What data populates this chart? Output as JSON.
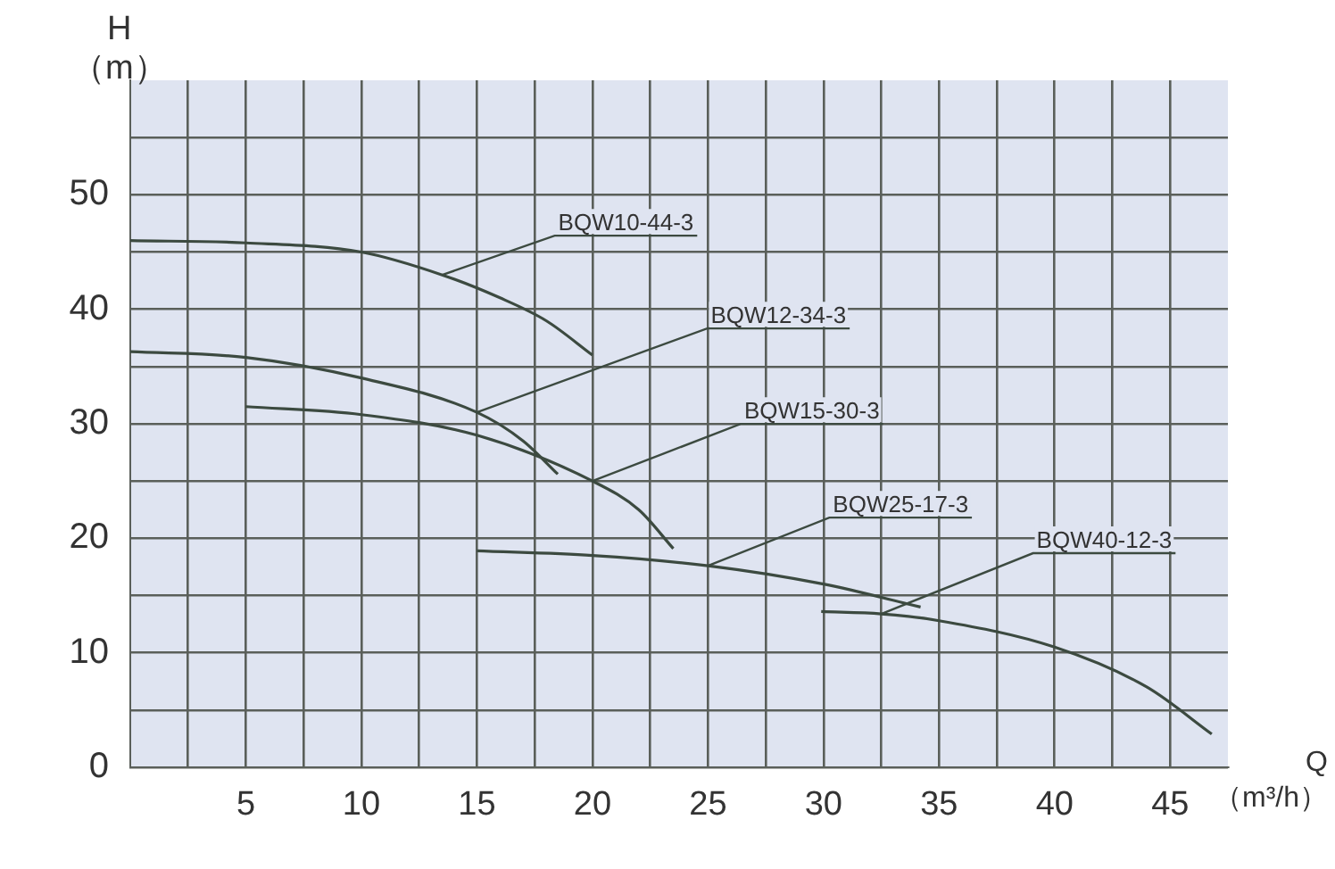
{
  "chart_data": {
    "type": "line",
    "xlabel": "Q\n（m³/h）",
    "ylabel": "H\n（m）",
    "xlim": [
      0,
      47.5
    ],
    "ylim": [
      0,
      60
    ],
    "xticks": [
      {
        "value": 2.5,
        "label": null
      },
      5,
      {
        "value": 7.5,
        "label": null
      },
      10,
      {
        "value": 12.5,
        "label": null
      },
      15,
      {
        "value": 17.5,
        "label": null
      },
      20,
      {
        "value": 22.5,
        "label": null
      },
      25,
      {
        "value": 27.5,
        "label": null
      },
      30,
      {
        "value": 32.5,
        "label": null
      },
      35,
      {
        "value": 37.5,
        "label": null
      },
      40,
      {
        "value": 42.5,
        "label": null
      },
      45
    ],
    "yticks": [
      0,
      {
        "value": 5,
        "label": null
      },
      10,
      {
        "value": 15,
        "label": null
      },
      20,
      {
        "value": 25,
        "label": null
      },
      30,
      {
        "value": 35,
        "label": null
      },
      40,
      {
        "value": 45,
        "label": null
      },
      50,
      {
        "value": 55,
        "label": null
      }
    ],
    "grid": true,
    "legend": false,
    "marker": "none",
    "line_style": "solid",
    "series": [
      {
        "name": "BQW10-44-3",
        "color": "#3c4a40",
        "x": [
          0,
          5,
          10,
          13.5,
          16,
          18,
          20
        ],
        "values": [
          46,
          45.8,
          45,
          43,
          41,
          39,
          36
        ]
      },
      {
        "name": "BQW12-34-3",
        "color": "#3c4a40",
        "x": [
          0,
          5,
          10,
          15,
          17,
          18.5
        ],
        "values": [
          36.3,
          35.8,
          34,
          31,
          28.5,
          25.6
        ]
      },
      {
        "name": "BQW15-30-3",
        "color": "#3c4a40",
        "x": [
          5,
          10,
          15,
          20,
          22,
          23.5
        ],
        "values": [
          31.5,
          30.8,
          29,
          25,
          22.5,
          19.1
        ]
      },
      {
        "name": "BQW25-17-3",
        "color": "#3c4a40",
        "x": [
          15,
          20,
          25,
          30,
          34.2
        ],
        "values": [
          18.9,
          18.5,
          17.6,
          16,
          14
        ]
      },
      {
        "name": "BQW40-12-3",
        "color": "#3c4a40",
        "x": [
          29.9,
          32.5,
          35,
          40,
          44,
          46.8
        ],
        "values": [
          13.6,
          13.4,
          12.8,
          10.5,
          7,
          2.9
        ]
      }
    ]
  }
}
